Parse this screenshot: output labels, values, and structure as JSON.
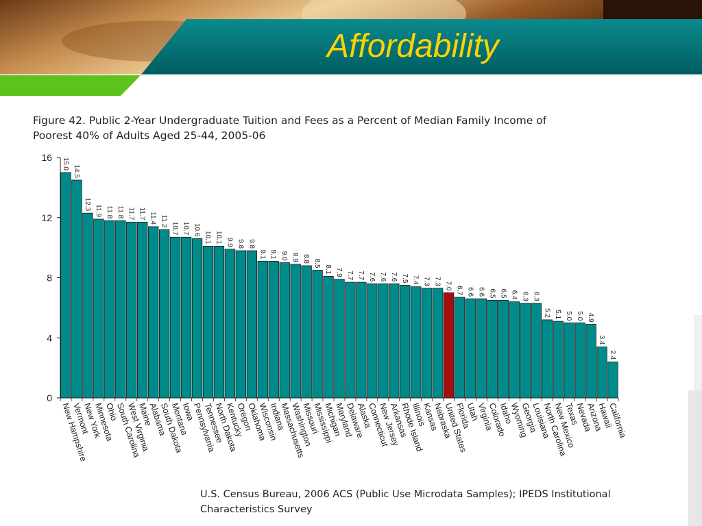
{
  "slide": {
    "title": "Affordability",
    "colors": {
      "title": "#ffd200",
      "banner": "#006f72",
      "green": "#5ec21c",
      "bar": "#008b8b",
      "highlight": "#a50f0f"
    }
  },
  "figure": {
    "title_line1": "Figure 42. Public 2-Year Undergraduate Tuition and Fees as a Percent of Median Family Income of",
    "title_line2": "Poorest 40% of Adults Aged 25-44, 2005-06"
  },
  "source": {
    "line1": "U.S. Census Bureau, 2006 ACS (Public Use Microdata Samples); IPEDS Institutional",
    "line2": "Characteristics Survey"
  },
  "chart_data": {
    "type": "bar",
    "title": "Public 2-Year Undergraduate Tuition and Fees as a Percent of Median Family Income of Poorest 40% of Adults Aged 25-44, 2005-06",
    "xlabel": "",
    "ylabel": "",
    "ylim": [
      0,
      16
    ],
    "yticks": [
      0,
      4,
      8,
      12,
      16
    ],
    "grid": false,
    "highlight": "United States",
    "categories": [
      "New Hampshire",
      "Vermont",
      "New York",
      "Minnesota",
      "Ohio",
      "South Carolina",
      "West Virginia",
      "Maine",
      "Alabama",
      "South Dakota",
      "Montana",
      "Iowa",
      "Pennsylvania",
      "Tennessee",
      "North Dakota",
      "Kentucky",
      "Oregon",
      "Oklahoma",
      "Wisconsin",
      "Indiana",
      "Massachusetts",
      "Washington",
      "Missouri",
      "Mississippi",
      "Michigan",
      "Maryland",
      "Delaware",
      "Alaska",
      "Connecticut",
      "New Jersey",
      "Arkansas",
      "Rhode Island",
      "Illinois",
      "Kansas",
      "Nebraska",
      "United States",
      "Florida",
      "Utah",
      "Virginia",
      "Colorado",
      "Idaho",
      "Wyoming",
      "Georgia",
      "Louisiana",
      "North Carolina",
      "New Mexico",
      "Texas",
      "Nevada",
      "Arizona",
      "Hawaii",
      "California"
    ],
    "values": [
      15.0,
      14.5,
      12.3,
      11.9,
      11.8,
      11.8,
      11.7,
      11.7,
      11.4,
      11.2,
      10.7,
      10.7,
      10.6,
      10.1,
      10.1,
      9.9,
      9.8,
      9.8,
      9.1,
      9.1,
      9.0,
      8.9,
      8.8,
      8.5,
      8.1,
      7.9,
      7.7,
      7.7,
      7.6,
      7.6,
      7.6,
      7.5,
      7.4,
      7.3,
      7.3,
      7.0,
      6.7,
      6.6,
      6.6,
      6.5,
      6.5,
      6.4,
      6.3,
      6.3,
      5.2,
      5.1,
      5.0,
      5.0,
      4.9,
      3.4,
      2.4
    ],
    "value_labels": [
      "15.0",
      "14.5",
      "12.3",
      "11.9",
      "11.8",
      "11.8",
      "11.7",
      "11.7",
      "11.4",
      "11.2",
      "10.7",
      "10.7",
      "10.6",
      "10.1",
      "10.1",
      "9.9",
      "9.8",
      "9.8",
      "9.1",
      "9.1",
      "9.0",
      "8.9",
      "8.8",
      "8.5",
      "8.1",
      "7.9",
      "7.7",
      "7.7",
      "7.6",
      "7.6",
      "7.6",
      "7.5",
      "7.4",
      "7.3",
      "7.3",
      "7.0",
      "6.7",
      "6.6",
      "6.6",
      "6.5",
      "6.5",
      "6.4",
      "6.3",
      "6.3",
      "5.2",
      "5.1",
      "5.0",
      "5.0",
      "4.9",
      "3.4",
      "2.4"
    ]
  }
}
